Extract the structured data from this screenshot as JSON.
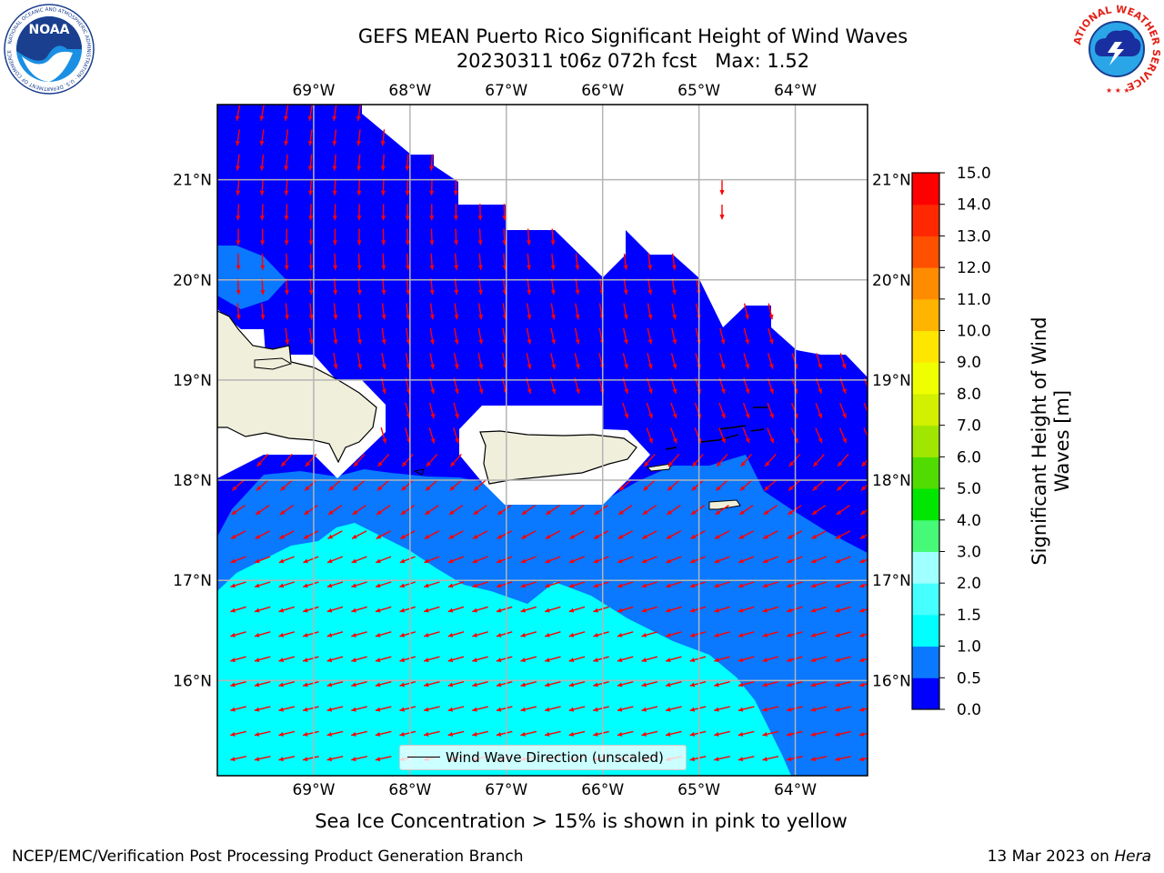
{
  "header": {
    "title_line1": "GEFS MEAN Puerto Rico Significant Height of Wind Waves",
    "title_line2": "20230311 t06z 072h fcst   Max: 1.52",
    "noaa_logo_text": "NOAA",
    "noaa_ring_text": "NATIONAL OCEANIC AND ATMOSPHERIC ADMINISTRATION · U.S. DEPARTMENT OF COMMERCE",
    "nws_ring_text": "NATIONAL WEATHER SERVICE"
  },
  "map": {
    "lon_range": [
      -70,
      -63.25
    ],
    "lat_range": [
      15.05,
      21.75
    ],
    "lon_ticks": [
      -69,
      -68,
      -67,
      -66,
      -65,
      -64
    ],
    "lat_ticks": [
      16,
      17,
      18,
      19,
      20,
      21
    ],
    "lon_labels": [
      "69°W",
      "68°W",
      "67°W",
      "66°W",
      "65°W",
      "64°W"
    ],
    "lat_labels": [
      "16°N",
      "17°N",
      "18°N",
      "19°N",
      "20°N",
      "21°N"
    ],
    "arrow_color": "#ff0000",
    "land_color": "#efefdc",
    "gridlines": true
  },
  "legend": {
    "label": "Wind Wave Direction (unscaled)"
  },
  "colorbar": {
    "title": "Significant Height of Wind Waves [m]",
    "ticks": [
      "0.0",
      "0.5",
      "1.0",
      "1.5",
      "2.0",
      "3.0",
      "4.0",
      "5.0",
      "6.0",
      "7.0",
      "8.0",
      "9.0",
      "10.0",
      "11.0",
      "12.0",
      "13.0",
      "14.0",
      "15.0"
    ],
    "colors": [
      "#0000ff",
      "#0a78ff",
      "#00ffff",
      "#46ffff",
      "#a0ffff",
      "#46fa78",
      "#00e600",
      "#50dc00",
      "#a0e600",
      "#d2f000",
      "#f0ff00",
      "#ffe600",
      "#ffb400",
      "#ff8c00",
      "#ff5000",
      "#ff2800",
      "#ff0000"
    ]
  },
  "chart_data": {
    "type": "heatmap",
    "title": "GEFS MEAN Puerto Rico Significant Height of Wind Waves",
    "max_value": 1.52,
    "units": "m",
    "field_levels_present": [
      "0.0-0.5",
      "0.5-1.0",
      "1.0-1.5"
    ]
  },
  "caption": "Sea Ice Concentration > 15% is shown in pink to yellow",
  "footer": {
    "left": "NCEP/EMC/Verification Post Processing Product Generation Branch",
    "right_prefix": "13 Mar 2023 on ",
    "right_italic": "Hera"
  }
}
